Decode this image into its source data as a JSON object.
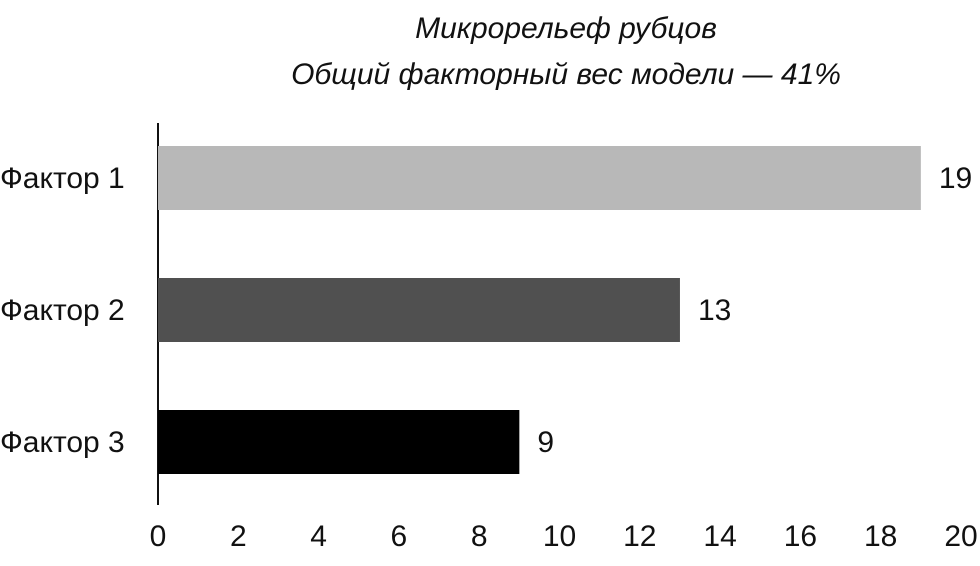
{
  "chart_data": {
    "type": "bar",
    "orientation": "horizontal",
    "title": "Микрорельеф рубцов",
    "subtitle": "Общий факторный вес модели — 41%",
    "categories": [
      "Фактор 1",
      "Фактор 2",
      "Фактор 3"
    ],
    "values": [
      19,
      13,
      9
    ],
    "colors": [
      "#b8b8b8",
      "#505050",
      "#000000"
    ],
    "xlim": [
      0,
      20
    ],
    "xticks": [
      0,
      2,
      4,
      6,
      8,
      10,
      12,
      14,
      16,
      18,
      20
    ],
    "grid": false
  }
}
